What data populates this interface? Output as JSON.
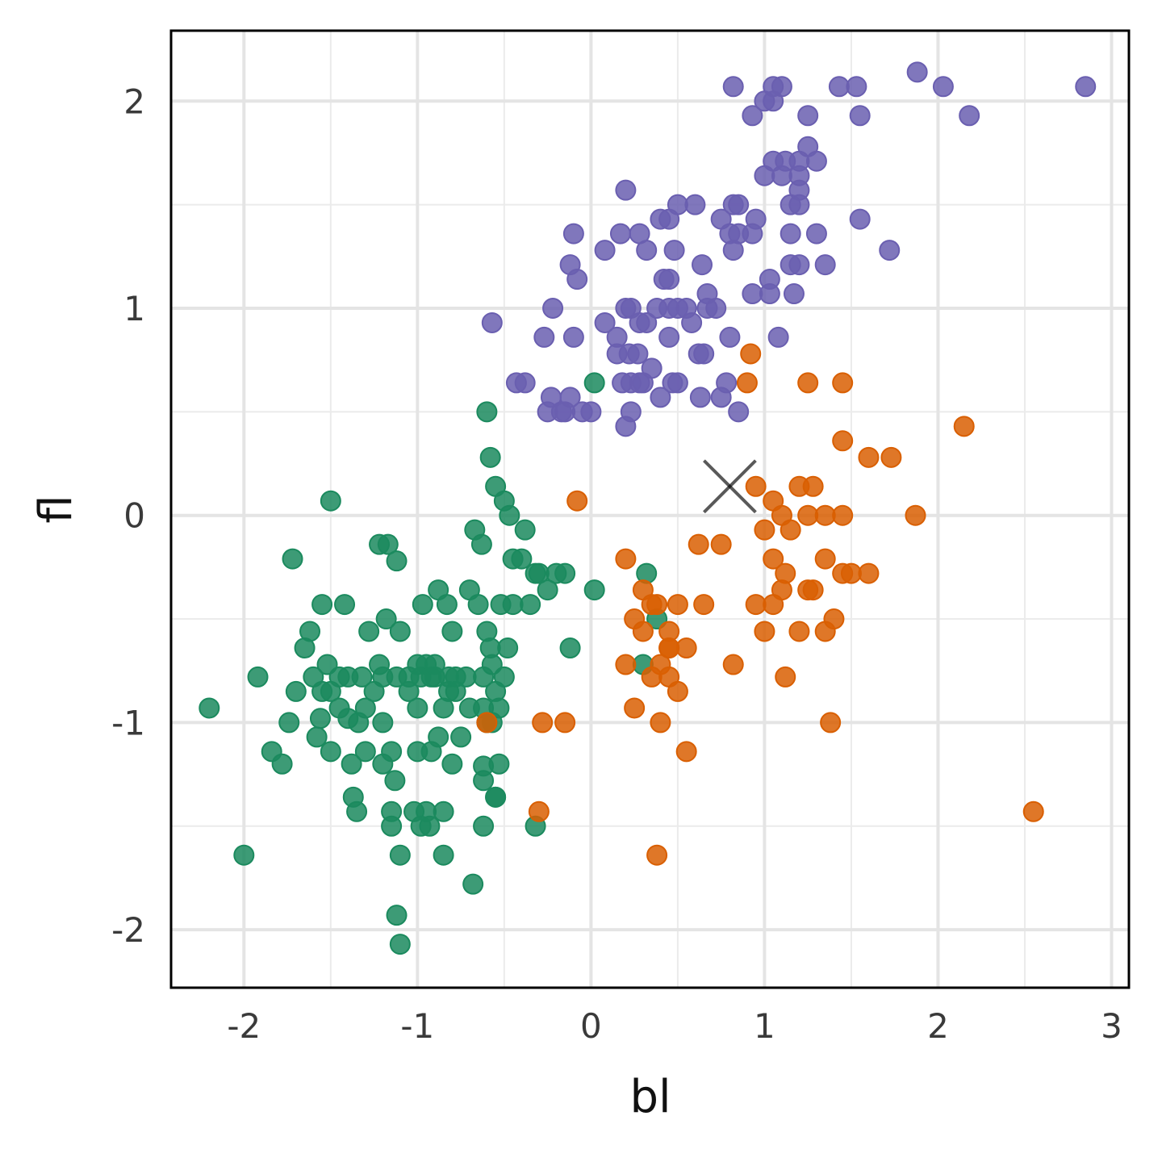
{
  "chart_data": {
    "type": "scatter",
    "xlabel": "bl",
    "ylabel": "fl",
    "xlim": [
      -2.42,
      3.1
    ],
    "ylim": [
      -2.28,
      2.34
    ],
    "x_ticks": [
      -2,
      -1,
      0,
      1,
      2,
      3
    ],
    "y_ticks": [
      -2,
      -1,
      0,
      1,
      2
    ],
    "x_tick_labels": [
      "-2",
      "-1",
      "0",
      "1",
      "2",
      "3"
    ],
    "y_tick_labels": [
      "-2",
      "-1",
      "0",
      "1",
      "2"
    ],
    "grid": true,
    "legend": "none",
    "marker": {
      "x": 0.8,
      "y": 0.14,
      "shape": "x",
      "color": "#000000"
    },
    "series": [
      {
        "color": "#1b8a5e",
        "points": [
          [
            -2.2,
            -0.93
          ],
          [
            -2.0,
            -1.64
          ],
          [
            -1.92,
            -0.78
          ],
          [
            -1.72,
            -0.21
          ],
          [
            -1.84,
            -1.14
          ],
          [
            -1.78,
            -1.2
          ],
          [
            -1.74,
            -1.0
          ],
          [
            -1.7,
            -0.85
          ],
          [
            -1.65,
            -0.64
          ],
          [
            -1.62,
            -0.56
          ],
          [
            -1.6,
            -0.78
          ],
          [
            -1.58,
            -1.07
          ],
          [
            -1.56,
            -0.98
          ],
          [
            -1.55,
            -0.43
          ],
          [
            -1.52,
            -0.72
          ],
          [
            -1.5,
            -0.85
          ],
          [
            -1.5,
            0.07
          ],
          [
            -1.5,
            -1.14
          ],
          [
            -1.45,
            -0.78
          ],
          [
            -1.42,
            -0.43
          ],
          [
            -1.4,
            -0.98
          ],
          [
            -1.38,
            -1.2
          ],
          [
            -1.37,
            -1.36
          ],
          [
            -1.35,
            -1.43
          ],
          [
            -1.34,
            -1.0
          ],
          [
            -1.32,
            -0.78
          ],
          [
            -1.3,
            -1.14
          ],
          [
            -1.28,
            -0.56
          ],
          [
            -1.25,
            -0.85
          ],
          [
            -1.22,
            -0.14
          ],
          [
            -1.22,
            -0.72
          ],
          [
            -1.2,
            -1.0
          ],
          [
            -1.2,
            -1.2
          ],
          [
            -1.18,
            -0.5
          ],
          [
            -1.17,
            -0.14
          ],
          [
            -1.15,
            -1.14
          ],
          [
            -1.15,
            -1.43
          ],
          [
            -1.15,
            -1.5
          ],
          [
            -1.13,
            -1.28
          ],
          [
            -1.12,
            -0.78
          ],
          [
            -1.12,
            -0.22
          ],
          [
            -1.1,
            -0.56
          ],
          [
            -1.1,
            -1.64
          ],
          [
            -1.05,
            -0.85
          ],
          [
            -1.02,
            -1.43
          ],
          [
            -1.0,
            -0.93
          ],
          [
            -1.0,
            -1.14
          ],
          [
            -0.98,
            -0.78
          ],
          [
            -0.97,
            -0.43
          ],
          [
            -0.95,
            -0.72
          ],
          [
            -0.93,
            -1.5
          ],
          [
            -0.92,
            -1.14
          ],
          [
            -0.9,
            -0.78
          ],
          [
            -0.88,
            -0.36
          ],
          [
            -0.88,
            -1.07
          ],
          [
            -0.85,
            -1.43
          ],
          [
            -0.85,
            -0.93
          ],
          [
            -0.83,
            -0.43
          ],
          [
            -0.82,
            -0.85
          ],
          [
            -0.8,
            -0.56
          ],
          [
            -0.8,
            -1.2
          ],
          [
            -0.78,
            -0.78
          ],
          [
            -0.75,
            -1.07
          ],
          [
            -0.7,
            -0.93
          ],
          [
            -0.7,
            -0.36
          ],
          [
            -0.68,
            -1.78
          ],
          [
            -0.65,
            -0.43
          ],
          [
            -0.62,
            -0.78
          ],
          [
            -0.6,
            -1.0
          ],
          [
            -0.6,
            -0.56
          ],
          [
            -0.58,
            -0.64
          ],
          [
            -0.57,
            -0.72
          ],
          [
            -0.55,
            -0.85
          ],
          [
            -0.55,
            -1.36
          ],
          [
            -0.53,
            -0.93
          ],
          [
            -0.52,
            -0.43
          ],
          [
            -0.5,
            -0.78
          ],
          [
            -0.48,
            -0.64
          ],
          [
            -0.45,
            -0.43
          ],
          [
            -0.4,
            -0.21
          ],
          [
            -0.38,
            -0.07
          ],
          [
            -0.35,
            -0.43
          ],
          [
            -0.3,
            -0.28
          ],
          [
            -0.25,
            -0.36
          ],
          [
            -0.2,
            -0.28
          ],
          [
            -0.15,
            -0.28
          ],
          [
            -0.12,
            -0.64
          ],
          [
            0.02,
            -0.36
          ],
          [
            -0.6,
            0.5
          ],
          [
            -0.58,
            0.28
          ],
          [
            -0.55,
            0.14
          ],
          [
            -0.5,
            0.07
          ],
          [
            -0.47,
            0.0
          ],
          [
            -0.63,
            -0.14
          ],
          [
            -0.67,
            -0.07
          ],
          [
            -0.45,
            -0.21
          ],
          [
            -0.32,
            -0.28
          ],
          [
            -0.55,
            -1.36
          ],
          [
            -0.62,
            -1.21
          ],
          [
            -0.62,
            -1.28
          ],
          [
            -0.53,
            -1.2
          ],
          [
            -0.32,
            -1.5
          ],
          [
            -1.12,
            -1.93
          ],
          [
            -1.1,
            -2.07
          ],
          [
            -0.95,
            -1.43
          ],
          [
            -0.98,
            -1.5
          ],
          [
            -0.85,
            -1.64
          ],
          [
            -0.62,
            -1.5
          ],
          [
            0.02,
            0.64
          ],
          [
            0.32,
            -0.28
          ],
          [
            0.38,
            -0.5
          ],
          [
            0.3,
            -0.72
          ],
          [
            -1.0,
            -0.72
          ],
          [
            -1.05,
            -0.78
          ],
          [
            -0.9,
            -0.72
          ],
          [
            -0.78,
            -0.85
          ],
          [
            -0.92,
            -0.78
          ],
          [
            -0.82,
            -0.78
          ],
          [
            -0.72,
            -0.78
          ],
          [
            -0.62,
            -0.93
          ],
          [
            -0.57,
            -1.0
          ],
          [
            -1.45,
            -0.93
          ],
          [
            -1.2,
            -0.78
          ],
          [
            -1.3,
            -0.93
          ],
          [
            -1.4,
            -0.78
          ],
          [
            -1.55,
            -0.85
          ]
        ]
      },
      {
        "color": "#d95f02",
        "points": [
          [
            0.92,
            0.78
          ],
          [
            0.9,
            0.64
          ],
          [
            1.25,
            0.64
          ],
          [
            1.45,
            0.64
          ],
          [
            2.15,
            0.43
          ],
          [
            1.45,
            0.36
          ],
          [
            1.6,
            0.28
          ],
          [
            1.73,
            0.28
          ],
          [
            0.95,
            0.14
          ],
          [
            1.05,
            0.07
          ],
          [
            1.1,
            0.0
          ],
          [
            1.2,
            0.14
          ],
          [
            1.28,
            0.14
          ],
          [
            1.25,
            0.0
          ],
          [
            1.35,
            0.0
          ],
          [
            1.45,
            0.0
          ],
          [
            1.87,
            0.0
          ],
          [
            1.15,
            -0.07
          ],
          [
            1.0,
            -0.07
          ],
          [
            0.62,
            -0.14
          ],
          [
            0.75,
            -0.14
          ],
          [
            1.05,
            -0.21
          ],
          [
            1.12,
            -0.28
          ],
          [
            1.35,
            -0.21
          ],
          [
            1.45,
            -0.28
          ],
          [
            1.5,
            -0.28
          ],
          [
            1.6,
            -0.28
          ],
          [
            1.1,
            -0.36
          ],
          [
            1.25,
            -0.36
          ],
          [
            0.95,
            -0.43
          ],
          [
            1.05,
            -0.43
          ],
          [
            0.65,
            -0.43
          ],
          [
            0.5,
            -0.43
          ],
          [
            0.38,
            -0.43
          ],
          [
            0.3,
            -0.36
          ],
          [
            0.25,
            -0.5
          ],
          [
            0.3,
            -0.56
          ],
          [
            0.45,
            -0.56
          ],
          [
            1.0,
            -0.56
          ],
          [
            1.2,
            -0.56
          ],
          [
            1.35,
            -0.56
          ],
          [
            1.4,
            -0.5
          ],
          [
            0.45,
            -0.64
          ],
          [
            0.55,
            -0.64
          ],
          [
            0.2,
            -0.72
          ],
          [
            0.4,
            -0.72
          ],
          [
            0.82,
            -0.72
          ],
          [
            0.35,
            -0.78
          ],
          [
            0.45,
            -0.78
          ],
          [
            0.5,
            -0.85
          ],
          [
            1.12,
            -0.78
          ],
          [
            0.25,
            -0.93
          ],
          [
            0.4,
            -1.0
          ],
          [
            -0.28,
            -1.0
          ],
          [
            -0.15,
            -1.0
          ],
          [
            -0.6,
            -1.0
          ],
          [
            0.55,
            -1.14
          ],
          [
            1.38,
            -1.0
          ],
          [
            2.55,
            -1.43
          ],
          [
            -0.3,
            -1.43
          ],
          [
            0.38,
            -1.64
          ],
          [
            -0.08,
            0.07
          ],
          [
            0.2,
            -0.21
          ],
          [
            0.35,
            -0.43
          ],
          [
            1.28,
            -0.36
          ],
          [
            0.45,
            -0.64
          ]
        ]
      },
      {
        "color": "#6a5fb0",
        "points": [
          [
            0.82,
            2.07
          ],
          [
            1.05,
            2.07
          ],
          [
            1.1,
            2.07
          ],
          [
            1.43,
            2.07
          ],
          [
            1.53,
            2.07
          ],
          [
            1.88,
            2.14
          ],
          [
            2.03,
            2.07
          ],
          [
            2.85,
            2.07
          ],
          [
            1.0,
            2.0
          ],
          [
            1.05,
            2.0
          ],
          [
            0.93,
            1.93
          ],
          [
            1.25,
            1.93
          ],
          [
            1.55,
            1.93
          ],
          [
            2.18,
            1.93
          ],
          [
            1.25,
            1.78
          ],
          [
            1.3,
            1.71
          ],
          [
            1.05,
            1.71
          ],
          [
            1.12,
            1.71
          ],
          [
            1.2,
            1.71
          ],
          [
            1.0,
            1.64
          ],
          [
            1.1,
            1.64
          ],
          [
            1.2,
            1.64
          ],
          [
            0.2,
            1.57
          ],
          [
            1.2,
            1.57
          ],
          [
            0.5,
            1.5
          ],
          [
            0.6,
            1.5
          ],
          [
            0.82,
            1.5
          ],
          [
            0.85,
            1.5
          ],
          [
            1.15,
            1.5
          ],
          [
            1.2,
            1.5
          ],
          [
            0.4,
            1.43
          ],
          [
            0.45,
            1.43
          ],
          [
            0.75,
            1.43
          ],
          [
            0.95,
            1.43
          ],
          [
            1.55,
            1.43
          ],
          [
            0.8,
            1.36
          ],
          [
            0.85,
            1.36
          ],
          [
            0.93,
            1.36
          ],
          [
            1.15,
            1.36
          ],
          [
            1.3,
            1.36
          ],
          [
            -0.1,
            1.36
          ],
          [
            0.17,
            1.36
          ],
          [
            0.28,
            1.36
          ],
          [
            0.08,
            1.28
          ],
          [
            0.32,
            1.28
          ],
          [
            0.48,
            1.28
          ],
          [
            0.82,
            1.28
          ],
          [
            1.72,
            1.28
          ],
          [
            -0.12,
            1.21
          ],
          [
            0.64,
            1.21
          ],
          [
            1.15,
            1.21
          ],
          [
            1.2,
            1.21
          ],
          [
            1.35,
            1.21
          ],
          [
            -0.08,
            1.14
          ],
          [
            0.42,
            1.14
          ],
          [
            0.45,
            1.14
          ],
          [
            1.03,
            1.14
          ],
          [
            0.67,
            1.07
          ],
          [
            0.93,
            1.07
          ],
          [
            1.03,
            1.07
          ],
          [
            1.17,
            1.07
          ],
          [
            -0.22,
            1.0
          ],
          [
            0.2,
            1.0
          ],
          [
            0.23,
            1.0
          ],
          [
            0.38,
            1.0
          ],
          [
            0.45,
            1.0
          ],
          [
            0.5,
            1.0
          ],
          [
            0.55,
            1.0
          ],
          [
            0.67,
            1.0
          ],
          [
            0.72,
            1.0
          ],
          [
            -0.57,
            0.93
          ],
          [
            0.08,
            0.93
          ],
          [
            0.28,
            0.93
          ],
          [
            0.32,
            0.93
          ],
          [
            0.58,
            0.93
          ],
          [
            -0.27,
            0.86
          ],
          [
            -0.1,
            0.86
          ],
          [
            0.15,
            0.86
          ],
          [
            0.45,
            0.86
          ],
          [
            0.8,
            0.86
          ],
          [
            1.08,
            0.86
          ],
          [
            0.15,
            0.78
          ],
          [
            0.22,
            0.78
          ],
          [
            0.27,
            0.78
          ],
          [
            0.62,
            0.78
          ],
          [
            0.65,
            0.78
          ],
          [
            0.35,
            0.71
          ],
          [
            0.18,
            0.64
          ],
          [
            0.23,
            0.64
          ],
          [
            0.3,
            0.64
          ],
          [
            0.47,
            0.64
          ],
          [
            0.5,
            0.64
          ],
          [
            0.78,
            0.64
          ],
          [
            -0.43,
            0.64
          ],
          [
            -0.38,
            0.64
          ],
          [
            -0.23,
            0.57
          ],
          [
            -0.12,
            0.57
          ],
          [
            0.4,
            0.57
          ],
          [
            0.63,
            0.57
          ],
          [
            0.75,
            0.57
          ],
          [
            -0.25,
            0.5
          ],
          [
            -0.17,
            0.5
          ],
          [
            -0.05,
            0.5
          ],
          [
            0.0,
            0.5
          ],
          [
            0.23,
            0.5
          ],
          [
            0.85,
            0.5
          ],
          [
            0.2,
            0.43
          ],
          [
            -0.15,
            0.5
          ],
          [
            0.28,
            0.64
          ]
        ]
      }
    ]
  }
}
